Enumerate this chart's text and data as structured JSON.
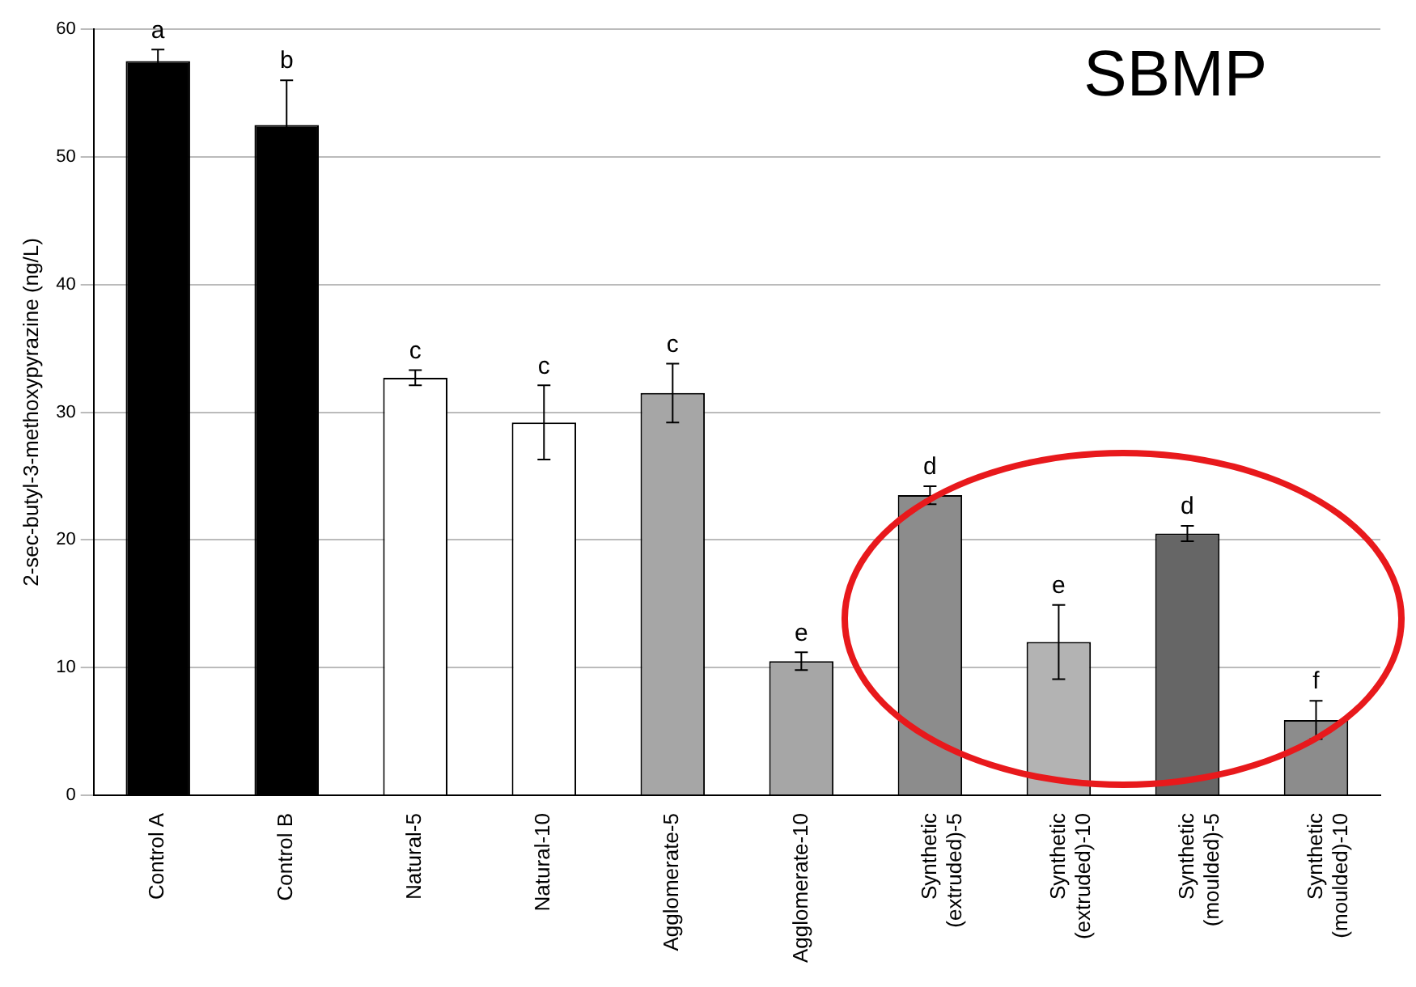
{
  "chart_data": {
    "type": "bar",
    "ylabel": "2-sec-butyl-3-methoxypyrazine (ng/L)",
    "categories": [
      "Control A",
      "Control B",
      "Natural-5",
      "Natural-10",
      "Agglomerate-5",
      "Agglomerate-10",
      "Synthetic (extruded)-5",
      "Synthetic (extruded)-10",
      "Synthetic (moulded)-5",
      "Synthetic (moulded)-10"
    ],
    "values": [
      57.5,
      52.5,
      32.7,
      29.2,
      31.5,
      10.5,
      23.5,
      12.0,
      20.5,
      5.9
    ],
    "errors": [
      0.9,
      3.5,
      0.6,
      2.9,
      2.3,
      0.7,
      0.7,
      2.9,
      0.6,
      1.5
    ],
    "value_labels": [
      "a",
      "b",
      "c",
      "c",
      "c",
      "e",
      "d",
      "e",
      "d",
      "f"
    ],
    "colors": [
      "#000000",
      "#000000",
      "#ffffff",
      "#ffffff",
      "#a6a6a6",
      "#a6a6a6",
      "#8c8c8c",
      "#b3b3b3",
      "#666666",
      "#8c8c8c"
    ],
    "ylim": [
      0,
      60
    ],
    "yticks": [
      0,
      10,
      20,
      30,
      40,
      50,
      60
    ],
    "grid": "y",
    "legend": false,
    "annotations": [
      "SBMP"
    ]
  }
}
